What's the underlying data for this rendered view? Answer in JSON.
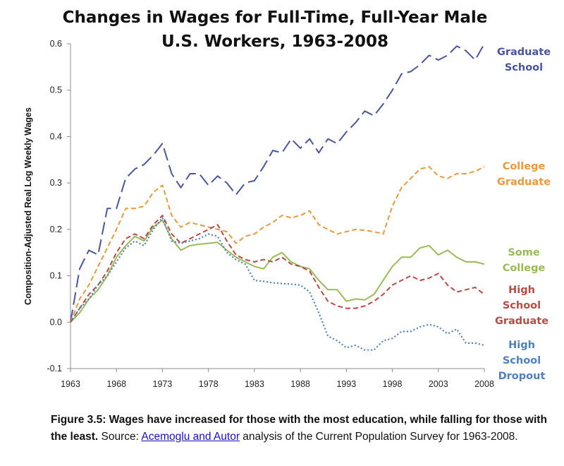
{
  "caption": {
    "bold_text": "Figure 3.5: Wages have increased for those with the most education, while falling for those with the least.",
    "source_prefix": " Source: ",
    "link_text": "Acemoglu and Autor",
    "source_suffix": " analysis of the Current Population Survey for 1963-2008."
  },
  "chart_data": {
    "type": "line",
    "title_lines": [
      "Changes in Wages for Full-Time, Full-Year Male",
      "U.S. Workers, 1963-2008"
    ],
    "xlabel": "",
    "ylabel": "Composition-Adjusted Real Log Weekly Wages",
    "xlim": [
      1963,
      2008
    ],
    "ylim": [
      -0.1,
      0.6
    ],
    "x_ticks": [
      1963,
      1968,
      1973,
      1978,
      1983,
      1988,
      1993,
      1998,
      2003,
      2008
    ],
    "y_ticks": [
      -0.1,
      0.0,
      0.1,
      0.2,
      0.3,
      0.4,
      0.5,
      0.6
    ],
    "y_tick_labels": [
      "-0.1",
      "0.0",
      "0.1",
      "0.2",
      "0.3",
      "0.4",
      "0.5",
      "0.6"
    ],
    "grid": false,
    "legend": "inline labels at right",
    "x": [
      1963,
      1964,
      1965,
      1966,
      1967,
      1968,
      1969,
      1970,
      1971,
      1972,
      1973,
      1974,
      1975,
      1976,
      1977,
      1978,
      1979,
      1980,
      1981,
      1982,
      1983,
      1984,
      1985,
      1986,
      1987,
      1988,
      1989,
      1990,
      1991,
      1992,
      1993,
      1994,
      1995,
      1996,
      1997,
      1998,
      1999,
      2000,
      2001,
      2002,
      2003,
      2004,
      2005,
      2006,
      2007,
      2008
    ],
    "series": [
      {
        "name_lines": [
          "Graduate",
          "School"
        ],
        "color": "#4a55a0",
        "dash": "18,7",
        "values": [
          0.0,
          0.115,
          0.155,
          0.145,
          0.245,
          0.245,
          0.31,
          0.33,
          0.34,
          0.36,
          0.385,
          0.32,
          0.29,
          0.32,
          0.32,
          0.295,
          0.315,
          0.3,
          0.275,
          0.3,
          0.305,
          0.335,
          0.37,
          0.365,
          0.395,
          0.375,
          0.395,
          0.365,
          0.395,
          0.385,
          0.41,
          0.43,
          0.455,
          0.445,
          0.47,
          0.5,
          0.535,
          0.54,
          0.555,
          0.575,
          0.565,
          0.575,
          0.595,
          0.585,
          0.565,
          0.6
        ]
      },
      {
        "name_lines": [
          "College",
          "Graduate"
        ],
        "color": "#e89a3c",
        "dash": "7,4",
        "values": [
          0.0,
          0.05,
          0.08,
          0.12,
          0.16,
          0.2,
          0.245,
          0.245,
          0.25,
          0.28,
          0.295,
          0.23,
          0.205,
          0.215,
          0.21,
          0.205,
          0.2,
          0.195,
          0.17,
          0.185,
          0.19,
          0.205,
          0.215,
          0.23,
          0.225,
          0.23,
          0.24,
          0.21,
          0.2,
          0.19,
          0.195,
          0.2,
          0.198,
          0.195,
          0.19,
          0.25,
          0.29,
          0.31,
          0.33,
          0.335,
          0.315,
          0.31,
          0.32,
          0.32,
          0.325,
          0.335
        ]
      },
      {
        "name_lines": [
          "Some",
          "College"
        ],
        "color": "#9bbb59",
        "dash": "",
        "values": [
          0.0,
          0.02,
          0.05,
          0.07,
          0.1,
          0.14,
          0.165,
          0.185,
          0.175,
          0.205,
          0.22,
          0.18,
          0.155,
          0.165,
          0.168,
          0.17,
          0.172,
          0.155,
          0.14,
          0.13,
          0.12,
          0.115,
          0.14,
          0.15,
          0.13,
          0.12,
          0.115,
          0.09,
          0.07,
          0.07,
          0.045,
          0.05,
          0.048,
          0.06,
          0.09,
          0.12,
          0.14,
          0.14,
          0.16,
          0.165,
          0.145,
          0.155,
          0.14,
          0.13,
          0.13,
          0.125
        ]
      },
      {
        "name_lines": [
          "High",
          "School",
          "Graduate"
        ],
        "color": "#b94b45",
        "dash": "7,4",
        "values": [
          0.0,
          0.03,
          0.06,
          0.08,
          0.11,
          0.15,
          0.18,
          0.19,
          0.18,
          0.21,
          0.23,
          0.19,
          0.17,
          0.18,
          0.19,
          0.2,
          0.21,
          0.175,
          0.145,
          0.135,
          0.13,
          0.135,
          0.13,
          0.14,
          0.125,
          0.12,
          0.11,
          0.075,
          0.045,
          0.035,
          0.03,
          0.03,
          0.035,
          0.045,
          0.06,
          0.08,
          0.09,
          0.1,
          0.09,
          0.095,
          0.105,
          0.08,
          0.065,
          0.07,
          0.075,
          0.06
        ]
      },
      {
        "name_lines": [
          "High",
          "School",
          "Dropout"
        ],
        "color": "#4f81bd",
        "dash": "2,3",
        "values": [
          0.0,
          0.03,
          0.05,
          0.08,
          0.1,
          0.13,
          0.16,
          0.175,
          0.165,
          0.2,
          0.225,
          0.175,
          0.17,
          0.175,
          0.18,
          0.19,
          0.185,
          0.15,
          0.135,
          0.125,
          0.09,
          0.088,
          0.085,
          0.083,
          0.082,
          0.08,
          0.065,
          0.02,
          -0.03,
          -0.04,
          -0.055,
          -0.05,
          -0.06,
          -0.06,
          -0.04,
          -0.035,
          -0.02,
          -0.02,
          -0.01,
          -0.005,
          -0.01,
          -0.025,
          -0.015,
          -0.045,
          -0.045,
          -0.05
        ]
      }
    ]
  }
}
